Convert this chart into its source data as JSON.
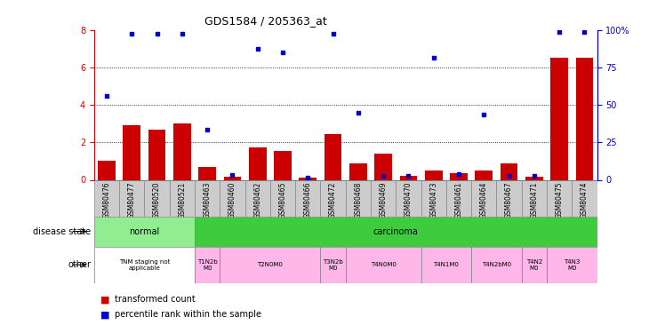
{
  "title": "GDS1584 / 205363_at",
  "samples": [
    "GSM80476",
    "GSM80477",
    "GSM80520",
    "GSM80521",
    "GSM80463",
    "GSM80460",
    "GSM80462",
    "GSM80465",
    "GSM80466",
    "GSM80472",
    "GSM80468",
    "GSM80469",
    "GSM80470",
    "GSM80473",
    "GSM80461",
    "GSM80464",
    "GSM80467",
    "GSM80471",
    "GSM80475",
    "GSM80474"
  ],
  "red_values": [
    1.0,
    2.9,
    2.7,
    3.0,
    0.7,
    0.15,
    1.75,
    1.55,
    0.12,
    2.45,
    0.9,
    1.4,
    0.2,
    0.5,
    0.35,
    0.5,
    0.9,
    0.15,
    6.5,
    6.5
  ],
  "blue_values": [
    4.5,
    7.8,
    7.8,
    7.8,
    2.7,
    0.25,
    7.0,
    6.8,
    0.1,
    7.8,
    3.6,
    0.2,
    0.2,
    6.5,
    0.3,
    3.5,
    0.2,
    0.2,
    7.9,
    7.9
  ],
  "ylim_left": [
    0,
    8
  ],
  "ylim_right": [
    0,
    100
  ],
  "yticks_left": [
    0,
    2,
    4,
    6,
    8
  ],
  "yticks_right": [
    0,
    25,
    50,
    75,
    100
  ],
  "ytick_right_labels": [
    "0",
    "25",
    "50",
    "75",
    "100%"
  ],
  "disease_groups": [
    {
      "label": "normal",
      "start": 0,
      "end": 4,
      "color": "#90EE90"
    },
    {
      "label": "carcinoma",
      "start": 4,
      "end": 20,
      "color": "#3ECC3E"
    }
  ],
  "other_groups": [
    {
      "label": "TNM staging not\napplicable",
      "start": 0,
      "end": 4,
      "color": "#ffffff"
    },
    {
      "label": "T1N2b\nM0",
      "start": 4,
      "end": 5,
      "color": "#FFB6E8"
    },
    {
      "label": "T2N0M0",
      "start": 5,
      "end": 9,
      "color": "#FFB6E8"
    },
    {
      "label": "T3N2b\nM0",
      "start": 9,
      "end": 10,
      "color": "#FFB6E8"
    },
    {
      "label": "T4N0M0",
      "start": 10,
      "end": 13,
      "color": "#FFB6E8"
    },
    {
      "label": "T4N1M0",
      "start": 13,
      "end": 15,
      "color": "#FFB6E8"
    },
    {
      "label": "T4N2bM0",
      "start": 15,
      "end": 17,
      "color": "#FFB6E8"
    },
    {
      "label": "T4N2\nM0",
      "start": 17,
      "end": 18,
      "color": "#FFB6E8"
    },
    {
      "label": "T4N3\nM0",
      "start": 18,
      "end": 20,
      "color": "#FFB6E8"
    }
  ],
  "bar_color": "#cc0000",
  "dot_color": "#0000cc",
  "left_tick_color": "#cc0000",
  "sample_box_color": "#cccccc",
  "sample_box_edgecolor": "#888888"
}
